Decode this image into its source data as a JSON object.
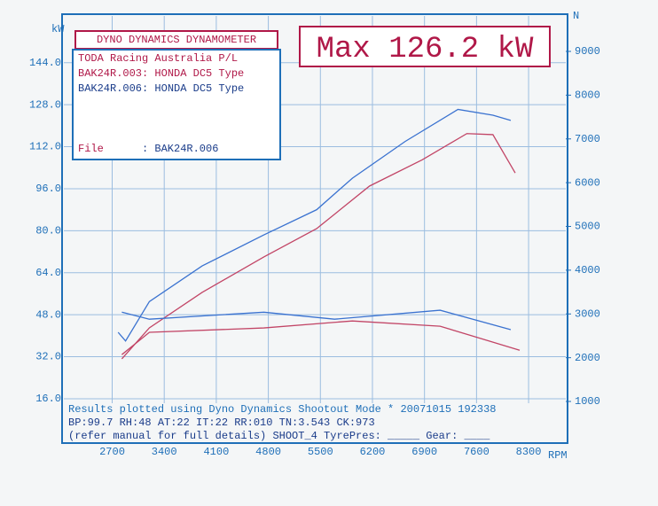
{
  "chart_data": {
    "type": "line",
    "title": "DYNO DYNAMICS DYNAMOMETER",
    "headline": "Max 126.2 kW",
    "info_lines": [
      "TODA Racing Australia P/L",
      "BAK24R.003: HONDA DC5 Type",
      "BAK24R.006: HONDA DC5 Type"
    ],
    "file_label": "File",
    "file_value": ": BAK24R.006",
    "footer_lines": [
      "Results plotted using Dyno Dynamics Shootout Mode * 20071015 192338",
      "BP:99.7  RH:48 AT:22 IT:22  RR:010 TN:3.543 CK:973",
      "(refer manual for full details) SHOOT_4  TyrePres: _____ Gear: ____"
    ],
    "y_label": "kW",
    "y2_label": "N",
    "x_label": "RPM",
    "xlim": [
      2050,
      8800
    ],
    "xticks": [
      2700,
      3400,
      4100,
      4800,
      5500,
      6200,
      6900,
      7600,
      8300
    ],
    "ylim": [
      14.3,
      161.8
    ],
    "yticks": [
      {
        "value": 16,
        "label": "16.0"
      },
      {
        "value": 32,
        "label": "32.0"
      },
      {
        "value": 48,
        "label": "48.0"
      },
      {
        "value": 64,
        "label": "64.0"
      },
      {
        "value": 80,
        "label": "80.0"
      },
      {
        "value": 96,
        "label": "96.0"
      },
      {
        "value": 112,
        "label": "112.0"
      },
      {
        "value": 128,
        "label": "128.0"
      },
      {
        "value": 144,
        "label": "144.0"
      }
    ],
    "y2lim": [
      960,
      9810
    ],
    "y2ticks": [
      1000,
      2000,
      3000,
      4000,
      5000,
      6000,
      7000,
      8000,
      9000
    ],
    "grid": true,
    "series": [
      {
        "color": "#3a72d0",
        "x": [
          2780,
          2880,
          3200,
          3910,
          4740,
          5450,
          5930,
          6640,
          7350,
          7820,
          8060
        ],
        "values": [
          41.3,
          38,
          53,
          66.6,
          78.4,
          88,
          100,
          114,
          126.2,
          124,
          122
        ]
      },
      {
        "color": "#c24566",
        "x": [
          2830,
          3200,
          3910,
          4740,
          5450,
          6160,
          6870,
          7470,
          7820,
          8120
        ],
        "values": [
          31.2,
          43,
          56.5,
          70,
          80.8,
          97,
          107,
          117,
          116.6,
          102
        ]
      },
      {
        "color": "#3a72d0",
        "axis": "y2",
        "x": [
          2830,
          3200,
          4740,
          5690,
          7110,
          8060
        ],
        "values": [
          3040,
          2880,
          3040,
          2880,
          3085,
          2640
        ]
      },
      {
        "color": "#c24566",
        "axis": "y2",
        "x": [
          2830,
          3200,
          4740,
          5930,
          7110,
          8180
        ],
        "values": [
          2070,
          2580,
          2680,
          2840,
          2720,
          2170
        ]
      }
    ]
  }
}
